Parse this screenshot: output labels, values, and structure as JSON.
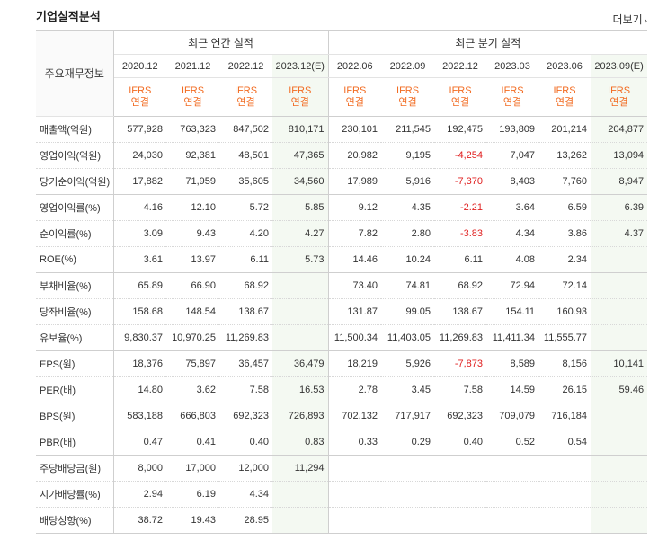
{
  "title": "기업실적분석",
  "more_label": "더보기",
  "header": {
    "stub": "주요재무정보",
    "annual_group": "최근 연간 실적",
    "quarter_group": "최근 분기 실적",
    "periods": [
      "2020.12",
      "2021.12",
      "2022.12",
      "2023.12(E)",
      "2022.06",
      "2022.09",
      "2022.12",
      "2023.03",
      "2023.06",
      "2023.09(E)"
    ],
    "standard": "IFRS",
    "consolidated": "연결"
  },
  "rows": [
    {
      "label": "매출액(억원)",
      "values": [
        "577,928",
        "763,323",
        "847,502",
        "810,171",
        "230,101",
        "211,545",
        "192,475",
        "193,809",
        "201,214",
        "204,877"
      ]
    },
    {
      "label": "영업이익(억원)",
      "values": [
        "24,030",
        "92,381",
        "48,501",
        "47,365",
        "20,982",
        "9,195",
        "-4,254",
        "7,047",
        "13,262",
        "13,094"
      ]
    },
    {
      "label": "당기순이익(억원)",
      "values": [
        "17,882",
        "71,959",
        "35,605",
        "34,560",
        "17,989",
        "5,916",
        "-7,370",
        "8,403",
        "7,760",
        "8,947"
      ]
    },
    {
      "label": "영업이익률(%)",
      "values": [
        "4.16",
        "12.10",
        "5.72",
        "5.85",
        "9.12",
        "4.35",
        "-2.21",
        "3.64",
        "6.59",
        "6.39"
      ]
    },
    {
      "label": "순이익률(%)",
      "values": [
        "3.09",
        "9.43",
        "4.20",
        "4.27",
        "7.82",
        "2.80",
        "-3.83",
        "4.34",
        "3.86",
        "4.37"
      ]
    },
    {
      "label": "ROE(%)",
      "values": [
        "3.61",
        "13.97",
        "6.11",
        "5.73",
        "14.46",
        "10.24",
        "6.11",
        "4.08",
        "2.34",
        ""
      ]
    },
    {
      "label": "부채비율(%)",
      "values": [
        "65.89",
        "66.90",
        "68.92",
        "",
        "73.40",
        "74.81",
        "68.92",
        "72.94",
        "72.14",
        ""
      ]
    },
    {
      "label": "당좌비율(%)",
      "values": [
        "158.68",
        "148.54",
        "138.67",
        "",
        "131.87",
        "99.05",
        "138.67",
        "154.11",
        "160.93",
        ""
      ]
    },
    {
      "label": "유보율(%)",
      "values": [
        "9,830.37",
        "10,970.25",
        "11,269.83",
        "",
        "11,500.34",
        "11,403.05",
        "11,269.83",
        "11,411.34",
        "11,555.77",
        ""
      ]
    },
    {
      "label": "EPS(원)",
      "values": [
        "18,376",
        "75,897",
        "36,457",
        "36,479",
        "18,219",
        "5,926",
        "-7,873",
        "8,589",
        "8,156",
        "10,141"
      ]
    },
    {
      "label": "PER(배)",
      "values": [
        "14.80",
        "3.62",
        "7.58",
        "16.53",
        "2.78",
        "3.45",
        "7.58",
        "14.59",
        "26.15",
        "59.46"
      ]
    },
    {
      "label": "BPS(원)",
      "values": [
        "583,188",
        "666,803",
        "692,323",
        "726,893",
        "702,132",
        "717,917",
        "692,323",
        "709,079",
        "716,184",
        ""
      ]
    },
    {
      "label": "PBR(배)",
      "values": [
        "0.47",
        "0.41",
        "0.40",
        "0.83",
        "0.33",
        "0.29",
        "0.40",
        "0.52",
        "0.54",
        ""
      ]
    },
    {
      "label": "주당배당금(원)",
      "values": [
        "8,000",
        "17,000",
        "12,000",
        "11,294",
        "",
        "",
        "",
        "",
        "",
        ""
      ]
    },
    {
      "label": "시가배당률(%)",
      "values": [
        "2.94",
        "6.19",
        "4.34",
        "",
        "",
        "",
        "",
        "",
        "",
        ""
      ]
    },
    {
      "label": "배당성향(%)",
      "values": [
        "38.72",
        "19.43",
        "28.95",
        "",
        "",
        "",
        "",
        "",
        "",
        ""
      ]
    }
  ],
  "group_end_rows": [
    2,
    5,
    8,
    12
  ],
  "colors": {
    "negative": "#e02020",
    "estimate_bg": "#f4f9f2",
    "ifrs": "#f26b21"
  }
}
